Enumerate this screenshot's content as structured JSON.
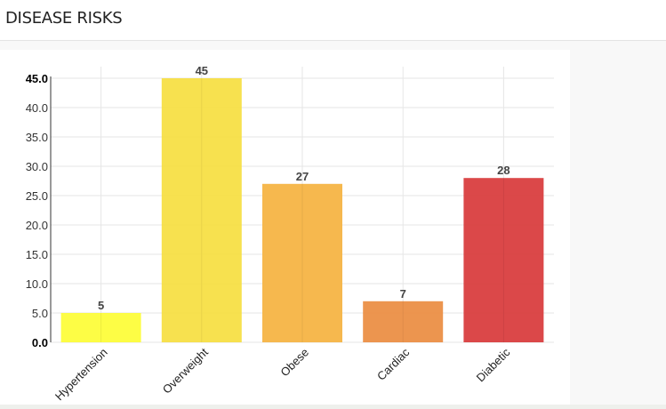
{
  "header": {
    "title": "DISEASE RISKS"
  },
  "chart_data": {
    "type": "bar",
    "title": "",
    "xlabel": "",
    "ylabel": "",
    "categories": [
      "Hypertension",
      "Overweight",
      "Obese",
      "Cardiac",
      "Diabetic"
    ],
    "values": [
      5,
      45,
      27,
      7,
      28
    ],
    "data_labels": [
      "5",
      "45",
      "27",
      "7",
      "28"
    ],
    "colors": [
      "#fdfd3b",
      "#f7df46",
      "#f6b445",
      "#eb8f46",
      "#d93e3f"
    ],
    "ylim": [
      0,
      45
    ],
    "yticks": [
      "0.0",
      "5.0",
      "10.0",
      "15.0",
      "20.0",
      "25.0",
      "30.0",
      "35.0",
      "40.0",
      "45.0"
    ],
    "grid": true
  }
}
